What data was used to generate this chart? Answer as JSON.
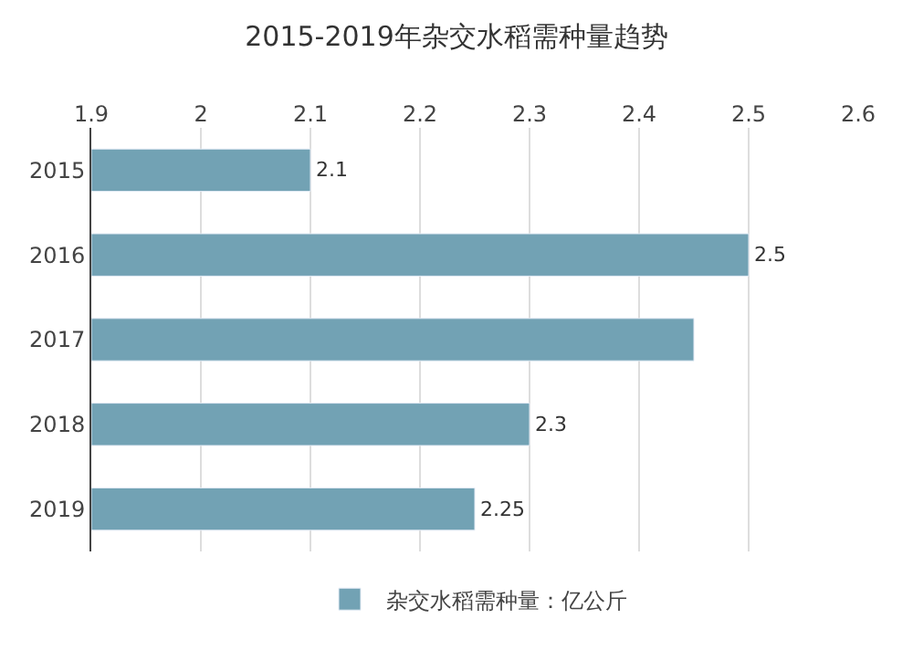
{
  "chart_data": {
    "type": "bar",
    "orientation": "horizontal",
    "title": "2015-2019年杂交水稻需种量趋势",
    "categories": [
      "2015",
      "2016",
      "2017",
      "2018",
      "2019"
    ],
    "series": [
      {
        "name": "杂交水稻需种量：亿公斤",
        "color": "#72a2b4",
        "values": [
          2.1,
          2.5,
          2.45,
          2.3,
          2.25
        ],
        "value_labels": [
          "2.1",
          "2.5",
          null,
          "2.3",
          "2.25"
        ]
      }
    ],
    "xlim": [
      1.9,
      2.6
    ],
    "xticks": [
      1.9,
      2,
      2.1,
      2.2,
      2.3,
      2.4,
      2.5,
      2.6
    ],
    "grid": "x",
    "legend": "bottom"
  }
}
